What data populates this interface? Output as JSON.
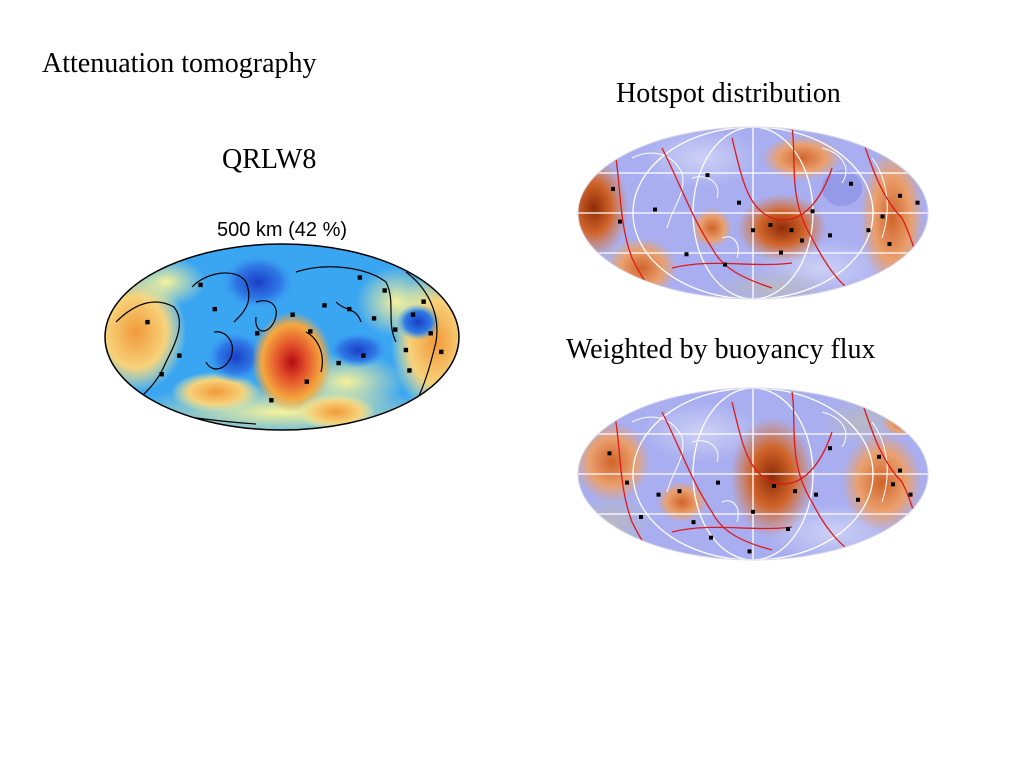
{
  "slide": {
    "title": "Attenuation tomography",
    "left_caption": "QRLW8",
    "right_top_caption": "Hotspot distribution",
    "right_bottom_caption": "Weighted by buoyancy flux"
  },
  "maps": {
    "left": {
      "header": "500 km (42 %)",
      "colors": {
        "base": "#3aa6f2",
        "cold": "#1f57d6",
        "warm": "#f5a83f",
        "hot": "#c8161a",
        "yellow": "#f7f29a"
      },
      "hotspots": [
        [
          0.43,
          0.48
        ],
        [
          0.53,
          0.38
        ],
        [
          0.58,
          0.47
        ],
        [
          0.62,
          0.33
        ],
        [
          0.69,
          0.35
        ],
        [
          0.76,
          0.4
        ],
        [
          0.79,
          0.25
        ],
        [
          0.82,
          0.46
        ],
        [
          0.85,
          0.57
        ],
        [
          0.87,
          0.38
        ],
        [
          0.9,
          0.31
        ],
        [
          0.92,
          0.48
        ],
        [
          0.86,
          0.68
        ],
        [
          0.73,
          0.6
        ],
        [
          0.66,
          0.64
        ],
        [
          0.57,
          0.74
        ],
        [
          0.47,
          0.84
        ],
        [
          0.21,
          0.6
        ],
        [
          0.16,
          0.7
        ],
        [
          0.31,
          0.35
        ],
        [
          0.12,
          0.42
        ],
        [
          0.27,
          0.22
        ],
        [
          0.72,
          0.18
        ],
        [
          0.95,
          0.58
        ]
      ]
    },
    "right_top": {
      "colors": {
        "base": "#a8aef0",
        "ocean_light": "#cdd0f5",
        "warm": "#e07a36",
        "hot": "#a83e10",
        "gray": "#b9b9c3"
      },
      "hotspots": [
        [
          0.1,
          0.36
        ],
        [
          0.12,
          0.55
        ],
        [
          0.22,
          0.48
        ],
        [
          0.31,
          0.74
        ],
        [
          0.37,
          0.28
        ],
        [
          0.46,
          0.44
        ],
        [
          0.5,
          0.6
        ],
        [
          0.55,
          0.57
        ],
        [
          0.61,
          0.6
        ],
        [
          0.64,
          0.66
        ],
        [
          0.67,
          0.49
        ],
        [
          0.72,
          0.63
        ],
        [
          0.78,
          0.33
        ],
        [
          0.83,
          0.6
        ],
        [
          0.87,
          0.52
        ],
        [
          0.92,
          0.4
        ],
        [
          0.89,
          0.68
        ],
        [
          0.97,
          0.44
        ],
        [
          0.58,
          0.73
        ],
        [
          0.42,
          0.8
        ]
      ]
    },
    "right_bottom": {
      "colors": {
        "base": "#a8aef0",
        "ocean_light": "#cdd0f5",
        "warm": "#e07a36",
        "hot": "#a83e10",
        "gray": "#b9b9c3"
      },
      "hotspots": [
        [
          0.09,
          0.38
        ],
        [
          0.14,
          0.55
        ],
        [
          0.23,
          0.62
        ],
        [
          0.29,
          0.6
        ],
        [
          0.33,
          0.78
        ],
        [
          0.4,
          0.55
        ],
        [
          0.5,
          0.72
        ],
        [
          0.56,
          0.57
        ],
        [
          0.62,
          0.6
        ],
        [
          0.68,
          0.62
        ],
        [
          0.72,
          0.35
        ],
        [
          0.8,
          0.65
        ],
        [
          0.86,
          0.4
        ],
        [
          0.9,
          0.56
        ],
        [
          0.95,
          0.62
        ],
        [
          0.92,
          0.48
        ],
        [
          0.49,
          0.95
        ],
        [
          0.6,
          0.82
        ],
        [
          0.38,
          0.87
        ],
        [
          0.18,
          0.75
        ]
      ]
    }
  }
}
